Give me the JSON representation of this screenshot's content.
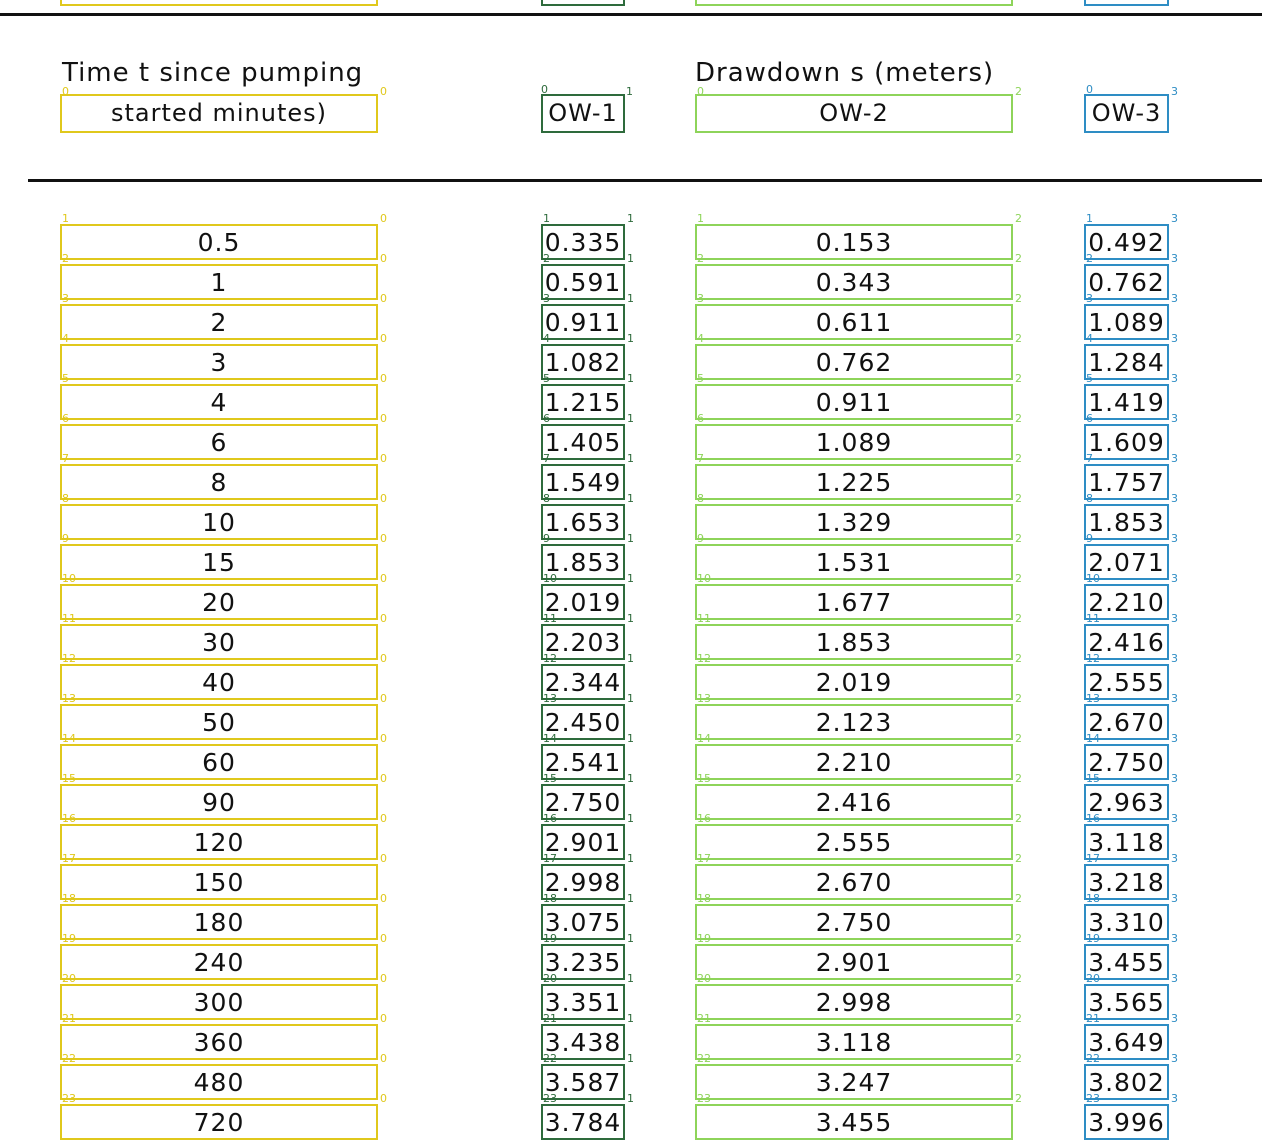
{
  "header": {
    "time_line1": "Time t since pumping",
    "time_line2": "started minutes)",
    "drawdown": "Drawdown s (meters)",
    "ow1": "OW-1",
    "ow2": "OW-2",
    "ow3": "OW-3"
  },
  "rows": [
    {
      "t": "0.5",
      "ow1": "0.335",
      "ow2": "0.153",
      "ow3": "0.492"
    },
    {
      "t": "1",
      "ow1": "0.591",
      "ow2": "0.343",
      "ow3": "0.762"
    },
    {
      "t": "2",
      "ow1": "0.911",
      "ow2": "0.611",
      "ow3": "1.089"
    },
    {
      "t": "3",
      "ow1": "1.082",
      "ow2": "0.762",
      "ow3": "1.284"
    },
    {
      "t": "4",
      "ow1": "1.215",
      "ow2": "0.911",
      "ow3": "1.419"
    },
    {
      "t": "6",
      "ow1": "1.405",
      "ow2": "1.089",
      "ow3": "1.609"
    },
    {
      "t": "8",
      "ow1": "1.549",
      "ow2": "1.225",
      "ow3": "1.757"
    },
    {
      "t": "10",
      "ow1": "1.653",
      "ow2": "1.329",
      "ow3": "1.853"
    },
    {
      "t": "15",
      "ow1": "1.853",
      "ow2": "1.531",
      "ow3": "2.071"
    },
    {
      "t": "20",
      "ow1": "2.019",
      "ow2": "1.677",
      "ow3": "2.210"
    },
    {
      "t": "30",
      "ow1": "2.203",
      "ow2": "1.853",
      "ow3": "2.416"
    },
    {
      "t": "40",
      "ow1": "2.344",
      "ow2": "2.019",
      "ow3": "2.555"
    },
    {
      "t": "50",
      "ow1": "2.450",
      "ow2": "2.123",
      "ow3": "2.670"
    },
    {
      "t": "60",
      "ow1": "2.541",
      "ow2": "2.210",
      "ow3": "2.750"
    },
    {
      "t": "90",
      "ow1": "2.750",
      "ow2": "2.416",
      "ow3": "2.963"
    },
    {
      "t": "120",
      "ow1": "2.901",
      "ow2": "2.555",
      "ow3": "3.118"
    },
    {
      "t": "150",
      "ow1": "2.998",
      "ow2": "2.670",
      "ow3": "3.218"
    },
    {
      "t": "180",
      "ow1": "3.075",
      "ow2": "2.750",
      "ow3": "3.310"
    },
    {
      "t": "240",
      "ow1": "3.235",
      "ow2": "2.901",
      "ow3": "3.455"
    },
    {
      "t": "300",
      "ow1": "3.351",
      "ow2": "2.998",
      "ow3": "3.565"
    },
    {
      "t": "360",
      "ow1": "3.438",
      "ow2": "3.118",
      "ow3": "3.649"
    },
    {
      "t": "480",
      "ow1": "3.587",
      "ow2": "3.247",
      "ow3": "3.802"
    },
    {
      "t": "720",
      "ow1": "3.784",
      "ow2": "3.455",
      "ow3": "3.996"
    }
  ],
  "annotation_colors": {
    "col0": "#e0c81c",
    "col1": "#2e6b3c",
    "col2": "#8ed45a",
    "col3": "#2e8dc4"
  }
}
